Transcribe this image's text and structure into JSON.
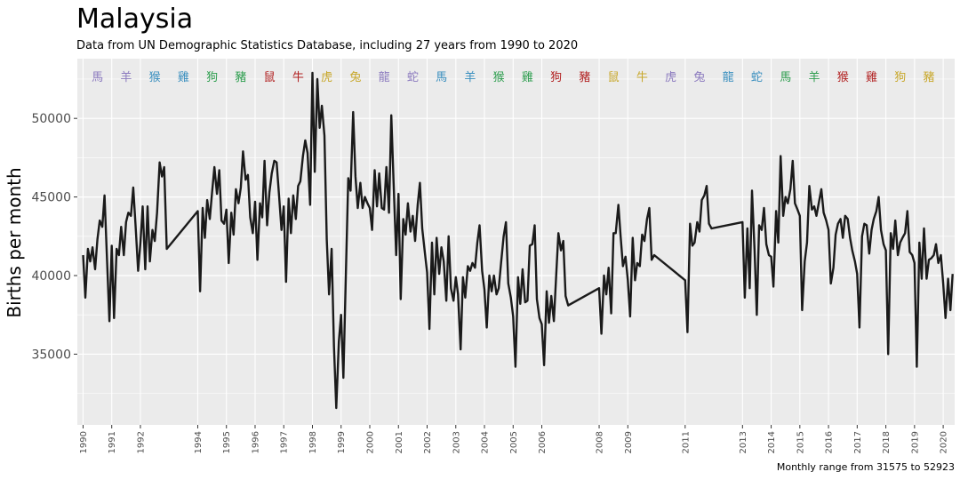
{
  "chart_data": {
    "type": "line",
    "title": "Malaysia",
    "subtitle": "Data from UN Demographic Statistics Database, including 27 years from 1990 to 2020",
    "ylabel": "Births per month",
    "caption": "Monthly range from 31575 to 52923",
    "ylim": [
      30500,
      53800
    ],
    "xlim": [
      1989.8,
      2020.4
    ],
    "yticks": [
      35000,
      40000,
      45000,
      50000
    ],
    "ytick_labels": [
      "35000",
      "40000",
      "45000",
      "50000"
    ],
    "xticks": [
      1990,
      1991,
      1992,
      1994,
      1995,
      1996,
      1997,
      1998,
      1999,
      2000,
      2001,
      2002,
      2003,
      2004,
      2005,
      2006,
      2008,
      2009,
      2011,
      2013,
      2014,
      2015,
      2016,
      2017,
      2018,
      2019,
      2020
    ],
    "xtick_labels": [
      "1990",
      "1991",
      "1992",
      "1994",
      "1995",
      "1996",
      "1997",
      "1998",
      "1999",
      "2000",
      "2001",
      "2002",
      "2003",
      "2004",
      "2005",
      "2006",
      "2008",
      "2009",
      "2011",
      "2013",
      "2014",
      "2015",
      "2016",
      "2017",
      "2018",
      "2019",
      "2020"
    ],
    "grid": true,
    "line_color": "#1a1a1a",
    "panel_color": "#ebebeb",
    "grid_color": "#ffffff",
    "zodiac": [
      {
        "x": 1990.5,
        "label": "馬",
        "color": "#8c7bbf"
      },
      {
        "x": 1991.5,
        "label": "羊",
        "color": "#8c7bbf"
      },
      {
        "x": 1992.5,
        "label": "猴",
        "color": "#3a8fbf"
      },
      {
        "x": 1993.5,
        "label": "雞",
        "color": "#3a8fbf"
      },
      {
        "x": 1994.5,
        "label": "狗",
        "color": "#2e9e4f"
      },
      {
        "x": 1995.5,
        "label": "豬",
        "color": "#2e9e4f"
      },
      {
        "x": 1996.5,
        "label": "鼠",
        "color": "#b22222"
      },
      {
        "x": 1997.5,
        "label": "牛",
        "color": "#b22222"
      },
      {
        "x": 1998.5,
        "label": "虎",
        "color": "#c8a82c"
      },
      {
        "x": 1999.5,
        "label": "兔",
        "color": "#c8a82c"
      },
      {
        "x": 2000.5,
        "label": "龍",
        "color": "#8c7bbf"
      },
      {
        "x": 2001.5,
        "label": "蛇",
        "color": "#8c7bbf"
      },
      {
        "x": 2002.5,
        "label": "馬",
        "color": "#3a8fbf"
      },
      {
        "x": 2003.5,
        "label": "羊",
        "color": "#3a8fbf"
      },
      {
        "x": 2004.5,
        "label": "猴",
        "color": "#2e9e4f"
      },
      {
        "x": 2005.5,
        "label": "雞",
        "color": "#2e9e4f"
      },
      {
        "x": 2006.5,
        "label": "狗",
        "color": "#b22222"
      },
      {
        "x": 2007.5,
        "label": "豬",
        "color": "#b22222"
      },
      {
        "x": 2008.5,
        "label": "鼠",
        "color": "#c8a82c"
      },
      {
        "x": 2009.5,
        "label": "牛",
        "color": "#c8a82c"
      },
      {
        "x": 2010.5,
        "label": "虎",
        "color": "#8c7bbf"
      },
      {
        "x": 2011.5,
        "label": "兔",
        "color": "#8c7bbf"
      },
      {
        "x": 2012.5,
        "label": "龍",
        "color": "#3a8fbf"
      },
      {
        "x": 2013.5,
        "label": "蛇",
        "color": "#3a8fbf"
      },
      {
        "x": 2014.5,
        "label": "馬",
        "color": "#2e9e4f"
      },
      {
        "x": 2015.5,
        "label": "羊",
        "color": "#2e9e4f"
      },
      {
        "x": 2016.5,
        "label": "猴",
        "color": "#b22222"
      },
      {
        "x": 2017.5,
        "label": "雞",
        "color": "#b22222"
      },
      {
        "x": 2018.5,
        "label": "狗",
        "color": "#c8a82c"
      },
      {
        "x": 2019.5,
        "label": "豬",
        "color": "#c8a82c"
      }
    ],
    "series": [
      {
        "x": [
          1990.0,
          1990.08,
          1990.17,
          1990.25,
          1990.33,
          1990.42,
          1990.5,
          1990.58,
          1990.67,
          1990.75,
          1990.83,
          1990.92,
          1991.0,
          1991.08,
          1991.17,
          1991.25,
          1991.33,
          1991.42,
          1991.5,
          1991.58,
          1991.67,
          1991.75,
          1991.83,
          1991.92,
          1992.0,
          1992.08,
          1992.17,
          1992.25,
          1992.33,
          1992.42,
          1992.5,
          1992.58,
          1992.67,
          1992.75,
          1992.83,
          1992.92,
          1994.0,
          1994.08,
          1994.17,
          1994.25,
          1994.33,
          1994.42,
          1994.5,
          1994.58,
          1994.67,
          1994.75,
          1994.83,
          1994.92,
          1995.0,
          1995.08,
          1995.17,
          1995.25,
          1995.33,
          1995.42,
          1995.5,
          1995.58,
          1995.67,
          1995.75,
          1995.83,
          1995.92,
          1996.0,
          1996.08,
          1996.17,
          1996.25,
          1996.33,
          1996.42,
          1996.5,
          1996.58,
          1996.67,
          1996.75,
          1996.83,
          1996.92,
          1997.0,
          1997.08,
          1997.17,
          1997.25,
          1997.33,
          1997.42,
          1997.5,
          1997.58,
          1997.67,
          1997.75,
          1997.83,
          1997.92,
          1998.0,
          1998.08,
          1998.17,
          1998.25,
          1998.33,
          1998.42,
          1998.5,
          1998.58,
          1998.67,
          1998.75,
          1998.83,
          1998.92,
          1999.0,
          1999.08,
          1999.17,
          1999.25,
          1999.33,
          1999.42,
          1999.5,
          1999.58,
          1999.67,
          1999.75,
          1999.83,
          1999.92,
          2000.0,
          2000.08,
          2000.17,
          2000.25,
          2000.33,
          2000.42,
          2000.5,
          2000.58,
          2000.67,
          2000.75,
          2000.83,
          2000.92,
          2001.0,
          2001.08,
          2001.17,
          2001.25,
          2001.33,
          2001.42,
          2001.5,
          2001.58,
          2001.67,
          2001.75,
          2001.83,
          2001.92,
          2002.0,
          2002.08,
          2002.17,
          2002.25,
          2002.33,
          2002.42,
          2002.5,
          2002.58,
          2002.67,
          2002.75,
          2002.83,
          2002.92,
          2003.0,
          2003.08,
          2003.17,
          2003.25,
          2003.33,
          2003.42,
          2003.5,
          2003.58,
          2003.67,
          2003.75,
          2003.83,
          2003.92,
          2004.0,
          2004.08,
          2004.17,
          2004.25,
          2004.33,
          2004.42,
          2004.5,
          2004.58,
          2004.67,
          2004.75,
          2004.83,
          2004.92,
          2005.0,
          2005.08,
          2005.17,
          2005.25,
          2005.33,
          2005.42,
          2005.5,
          2005.58,
          2005.67,
          2005.75,
          2005.83,
          2005.92,
          2006.0,
          2006.08,
          2006.17,
          2006.25,
          2006.33,
          2006.42,
          2006.5,
          2006.58,
          2006.67,
          2006.75,
          2006.83,
          2006.92,
          2008.0,
          2008.08,
          2008.17,
          2008.25,
          2008.33,
          2008.42,
          2008.5,
          2008.58,
          2008.67,
          2008.75,
          2008.83,
          2008.92,
          2009.0,
          2009.08,
          2009.17,
          2009.25,
          2009.33,
          2009.42,
          2009.5,
          2009.58,
          2009.67,
          2009.75,
          2009.83,
          2009.92,
          2011.0,
          2011.08,
          2011.17,
          2011.25,
          2011.33,
          2011.42,
          2011.5,
          2011.58,
          2011.67,
          2011.75,
          2011.83,
          2011.92,
          2013.0,
          2013.08,
          2013.17,
          2013.25,
          2013.33,
          2013.42,
          2013.5,
          2013.58,
          2013.67,
          2013.75,
          2013.83,
          2013.92,
          2014.0,
          2014.08,
          2014.17,
          2014.25,
          2014.33,
          2014.42,
          2014.5,
          2014.58,
          2014.67,
          2014.75,
          2014.83,
          2014.92,
          2015.0,
          2015.08,
          2015.17,
          2015.25,
          2015.33,
          2015.42,
          2015.5,
          2015.58,
          2015.67,
          2015.75,
          2015.83,
          2015.92,
          2016.0,
          2016.08,
          2016.17,
          2016.25,
          2016.33,
          2016.42,
          2016.5,
          2016.58,
          2016.67,
          2016.75,
          2016.83,
          2016.92,
          2017.0,
          2017.08,
          2017.17,
          2017.25,
          2017.33,
          2017.42,
          2017.5,
          2017.58,
          2017.67,
          2017.75,
          2017.83,
          2017.92,
          2018.0,
          2018.08,
          2018.17,
          2018.25,
          2018.33,
          2018.42,
          2018.5,
          2018.58,
          2018.67,
          2018.75,
          2018.83,
          2018.92,
          2019.0,
          2019.08,
          2019.17,
          2019.25,
          2019.33,
          2019.42,
          2019.5,
          2019.58,
          2019.67,
          2019.75,
          2019.83,
          2019.92,
          2020.0,
          2020.08,
          2020.17,
          2020.25,
          2020.33
        ],
        "y": [
          41300,
          38600,
          41700,
          40900,
          41800,
          40400,
          42300,
          43500,
          43100,
          45100,
          41300,
          37100,
          41900,
          37300,
          41700,
          41300,
          43100,
          41300,
          43400,
          44000,
          43800,
          45600,
          43200,
          40300,
          42100,
          44400,
          40400,
          44400,
          40900,
          42900,
          42200,
          44000,
          47200,
          46300,
          46900,
          41700,
          44100,
          39000,
          44300,
          42400,
          44800,
          43600,
          45300,
          46900,
          45200,
          46700,
          43500,
          43300,
          44200,
          40800,
          44000,
          42600,
          45500,
          44600,
          45600,
          47900,
          46100,
          46400,
          43700,
          42700,
          44700,
          41000,
          44600,
          43700,
          47300,
          43200,
          45300,
          46500,
          47300,
          47200,
          45200,
          42900,
          44400,
          39600,
          44900,
          42700,
          45100,
          43600,
          45700,
          46000,
          47600,
          48600,
          47800,
          44500,
          52900,
          46600,
          52500,
          49400,
          50800,
          48900,
          42300,
          38800,
          41700,
          35500,
          31575,
          35800,
          37500,
          33500,
          40300,
          46200,
          45400,
          50400,
          46300,
          44300,
          45900,
          44300,
          45000,
          44600,
          44300,
          42900,
          46700,
          44400,
          46500,
          44300,
          44200,
          46900,
          44000,
          50200,
          45900,
          41300,
          45200,
          38500,
          43600,
          42600,
          44600,
          42800,
          43800,
          42200,
          44500,
          45900,
          43000,
          41500,
          40200,
          36600,
          42100,
          38800,
          42400,
          40100,
          41800,
          40900,
          38400,
          42500,
          39200,
          38400,
          39900,
          38800,
          35300,
          39900,
          38600,
          40600,
          40300,
          40800,
          40500,
          42100,
          43200,
          40300,
          39100,
          36700,
          40000,
          39000,
          40000,
          38800,
          39200,
          40800,
          42500,
          43400,
          39500,
          38600,
          37400,
          34200,
          39900,
          38200,
          40400,
          38300,
          38400,
          41900,
          42000,
          43200,
          38500,
          37300,
          36900,
          34300,
          39000,
          37000,
          38700,
          37100,
          40000,
          42700,
          41600,
          42200,
          38700,
          38100,
          39200,
          36300,
          40000,
          38800,
          40500,
          37600,
          42700,
          42700,
          44500,
          42500,
          40600,
          41200,
          39700,
          37400,
          42400,
          39700,
          40800,
          40600,
          42600,
          42200,
          43600,
          44300,
          41000,
          41300,
          39700,
          36400,
          43300,
          41900,
          42100,
          43400,
          42800,
          44800,
          45100,
          45700,
          43300,
          43000,
          43400,
          38600,
          43000,
          39200,
          45400,
          41600,
          37500,
          43200,
          42900,
          44300,
          42000,
          41300,
          41200,
          39300,
          44100,
          42100,
          47600,
          43800,
          45000,
          44600,
          45500,
          47300,
          44600,
          44200,
          43800,
          37800,
          40900,
          42100,
          45700,
          44200,
          44400,
          43800,
          44700,
          45500,
          44000,
          43500,
          42900,
          39500,
          40500,
          42600,
          43300,
          43600,
          42400,
          43800,
          43600,
          42400,
          41600,
          40900,
          40100,
          36700,
          42500,
          43300,
          43200,
          41400,
          42900,
          43600,
          44100,
          45000,
          42900,
          42000,
          41600,
          35000,
          42700,
          41700,
          43500,
          41300,
          42100,
          42400,
          42700,
          44100,
          41500,
          41300,
          40800,
          34200,
          42100,
          39800,
          43000,
          39800,
          41000,
          41100,
          41300,
          42000,
          40800,
          41300,
          39500,
          37300,
          39800,
          37800,
          40100
        ]
      }
    ]
  }
}
